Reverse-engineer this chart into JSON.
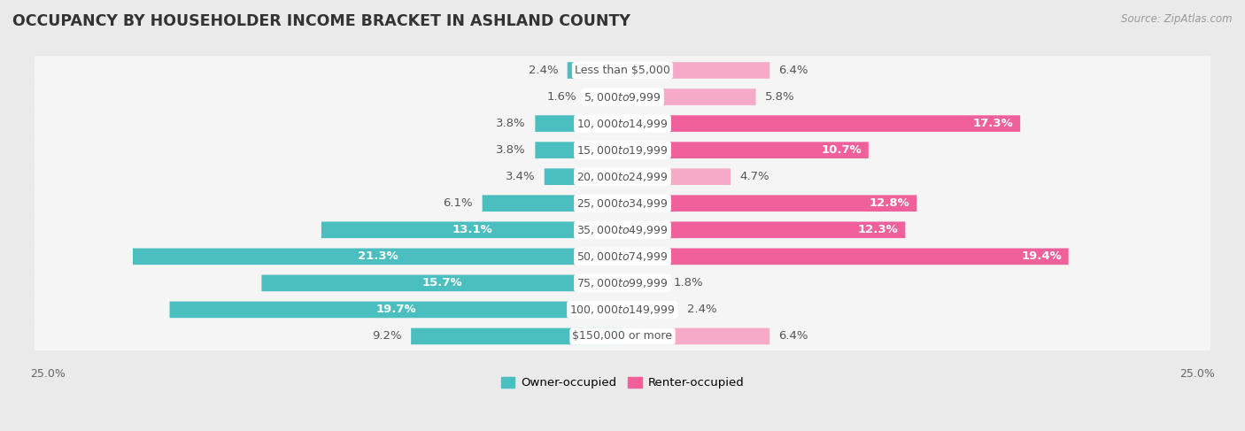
{
  "title": "OCCUPANCY BY HOUSEHOLDER INCOME BRACKET IN ASHLAND COUNTY",
  "source": "Source: ZipAtlas.com",
  "categories": [
    "Less than $5,000",
    "$5,000 to $9,999",
    "$10,000 to $14,999",
    "$15,000 to $19,999",
    "$20,000 to $24,999",
    "$25,000 to $34,999",
    "$35,000 to $49,999",
    "$50,000 to $74,999",
    "$75,000 to $99,999",
    "$100,000 to $149,999",
    "$150,000 or more"
  ],
  "owner_values": [
    2.4,
    1.6,
    3.8,
    3.8,
    3.4,
    6.1,
    13.1,
    21.3,
    15.7,
    19.7,
    9.2
  ],
  "renter_values": [
    6.4,
    5.8,
    17.3,
    10.7,
    4.7,
    12.8,
    12.3,
    19.4,
    1.8,
    2.4,
    6.4
  ],
  "owner_color": "#4bbfbf",
  "renter_color_high": "#f0609a",
  "renter_color_low": "#f5aac8",
  "renter_threshold": 10.0,
  "background_color": "#eaeaea",
  "bar_bg_color": "#f5f5f5",
  "row_bg_color": "#e8e8e8",
  "axis_limit": 25.0,
  "label_fontsize": 9.5,
  "cat_fontsize": 9.0,
  "title_fontsize": 12.5,
  "source_fontsize": 8.5,
  "legend_fontsize": 9.5,
  "axis_label_fontsize": 9.0,
  "bar_height": 0.62,
  "owner_label": "Owner-occupied",
  "renter_label": "Renter-occupied",
  "value_label_color_outside": "#555555",
  "value_label_color_inside": "#ffffff",
  "cat_label_color": "#555555",
  "owner_inside_threshold": 10.0,
  "renter_inside_threshold": 10.0
}
